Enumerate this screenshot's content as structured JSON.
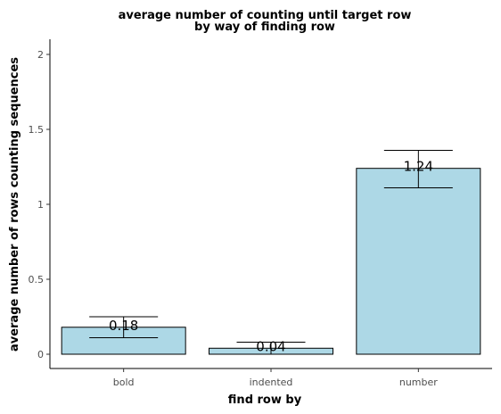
{
  "chart_data": {
    "type": "bar",
    "title_line1": "average number of counting until target row",
    "title_line2": "by way of finding row",
    "xlabel": "find row by",
    "ylabel": "average number of rows counting sequences",
    "categories": [
      "bold",
      "indented",
      "number"
    ],
    "values": [
      0.18,
      0.04,
      1.24
    ],
    "value_labels": [
      "0.18",
      "0.04",
      "1.24"
    ],
    "error_low": [
      0.11,
      0.0,
      1.11
    ],
    "error_high": [
      0.25,
      0.08,
      1.36
    ],
    "ylim": [
      0,
      2
    ],
    "yticks": [
      0,
      0.5,
      1,
      1.5,
      2
    ],
    "ytick_labels": [
      "0",
      "0.5",
      "1",
      "1.5",
      "2"
    ],
    "bar_color": "#add8e6",
    "grid": false,
    "legend": "none"
  }
}
